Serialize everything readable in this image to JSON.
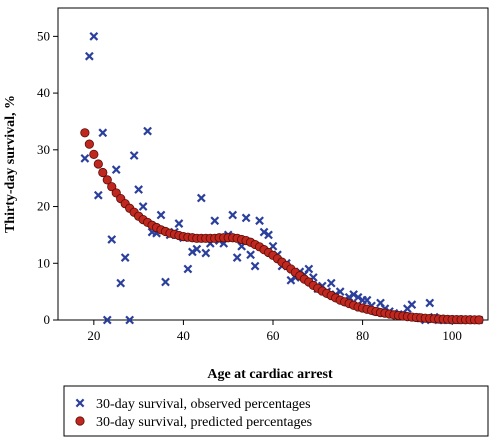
{
  "chart_data": {
    "type": "scatter",
    "title": "",
    "xlabel": "Age at cardiac arrest",
    "ylabel": "Thirty-day survival, %",
    "xlim": [
      12,
      108
    ],
    "ylim": [
      0,
      55
    ],
    "xticks": [
      "20",
      "40",
      "60",
      "80",
      "100"
    ],
    "yticks": [
      "0",
      "10",
      "20",
      "30",
      "40",
      "50"
    ],
    "grid": false,
    "legend_position": "below",
    "series": [
      {
        "name": "30-day survival, observed percentages",
        "marker": "x",
        "color": "#2b3f9c",
        "points": [
          [
            18,
            28.5
          ],
          [
            19,
            46.5
          ],
          [
            20,
            50
          ],
          [
            21,
            22
          ],
          [
            22,
            33
          ],
          [
            23,
            0
          ],
          [
            24,
            14.2
          ],
          [
            25,
            26.5
          ],
          [
            26,
            6.5
          ],
          [
            27,
            11
          ],
          [
            28,
            0
          ],
          [
            29,
            29
          ],
          [
            30,
            23
          ],
          [
            31,
            20
          ],
          [
            32,
            33.3
          ],
          [
            33,
            15.5
          ],
          [
            34,
            15.3
          ],
          [
            35,
            18.5
          ],
          [
            36,
            6.7
          ],
          [
            37,
            15
          ],
          [
            38,
            15.5
          ],
          [
            39,
            17
          ],
          [
            40,
            14.5
          ],
          [
            41,
            9
          ],
          [
            42,
            12
          ],
          [
            43,
            12.5
          ],
          [
            44,
            21.5
          ],
          [
            45,
            11.8
          ],
          [
            46,
            13.5
          ],
          [
            47,
            17.5
          ],
          [
            48,
            14
          ],
          [
            49,
            13.5
          ],
          [
            50,
            15
          ],
          [
            51,
            18.5
          ],
          [
            52,
            11
          ],
          [
            53,
            13
          ],
          [
            54,
            18
          ],
          [
            55,
            11.5
          ],
          [
            56,
            9.5
          ],
          [
            57,
            17.5
          ],
          [
            58,
            15.5
          ],
          [
            59,
            15
          ],
          [
            60,
            13
          ],
          [
            61,
            11.5
          ],
          [
            62,
            9.5
          ],
          [
            63,
            10
          ],
          [
            64,
            7
          ],
          [
            65,
            7.5
          ],
          [
            66,
            8.5
          ],
          [
            67,
            8
          ],
          [
            68,
            9
          ],
          [
            69,
            7.5
          ],
          [
            70,
            5.5
          ],
          [
            71,
            6
          ],
          [
            72,
            5
          ],
          [
            73,
            6.5
          ],
          [
            74,
            4.5
          ],
          [
            75,
            5
          ],
          [
            76,
            3.5
          ],
          [
            77,
            4
          ],
          [
            78,
            4.5
          ],
          [
            79,
            4
          ],
          [
            80,
            3.5
          ],
          [
            81,
            3.5
          ],
          [
            82,
            2.5
          ],
          [
            83,
            1.5
          ],
          [
            84,
            3
          ],
          [
            85,
            2
          ],
          [
            86,
            1.5
          ],
          [
            87,
            1.2
          ],
          [
            88,
            1
          ],
          [
            89,
            0.8
          ],
          [
            90,
            2
          ],
          [
            91,
            2.7
          ],
          [
            92,
            0.5
          ],
          [
            93,
            0.3
          ],
          [
            94,
            0
          ],
          [
            95,
            3
          ],
          [
            96,
            0.5
          ],
          [
            97,
            0
          ],
          [
            98,
            0
          ],
          [
            99,
            0
          ],
          [
            100,
            0
          ],
          [
            101,
            0
          ],
          [
            102,
            0
          ],
          [
            105,
            0
          ],
          [
            106,
            0
          ]
        ]
      },
      {
        "name": "30-day survival, predicted percentages",
        "marker": "circle",
        "color": "#c0271f",
        "points": [
          [
            18,
            33
          ],
          [
            19,
            31
          ],
          [
            20,
            29.2
          ],
          [
            21,
            27.5
          ],
          [
            22,
            26
          ],
          [
            23,
            24.7
          ],
          [
            24,
            23.5
          ],
          [
            25,
            22.4
          ],
          [
            26,
            21.4
          ],
          [
            27,
            20.5
          ],
          [
            28,
            19.7
          ],
          [
            29,
            19
          ],
          [
            30,
            18.3
          ],
          [
            31,
            17.7
          ],
          [
            32,
            17.2
          ],
          [
            33,
            16.7
          ],
          [
            34,
            16.3
          ],
          [
            35,
            15.9
          ],
          [
            36,
            15.6
          ],
          [
            37,
            15.3
          ],
          [
            38,
            15.1
          ],
          [
            39,
            14.9
          ],
          [
            40,
            14.7
          ],
          [
            41,
            14.6
          ],
          [
            42,
            14.5
          ],
          [
            43,
            14.4
          ],
          [
            44,
            14.4
          ],
          [
            45,
            14.4
          ],
          [
            46,
            14.4
          ],
          [
            47,
            14.4
          ],
          [
            48,
            14.5
          ],
          [
            49,
            14.5
          ],
          [
            50,
            14.5
          ],
          [
            51,
            14.5
          ],
          [
            52,
            14.4
          ],
          [
            53,
            14.2
          ],
          [
            54,
            14
          ],
          [
            55,
            13.7
          ],
          [
            56,
            13.3
          ],
          [
            57,
            12.9
          ],
          [
            58,
            12.4
          ],
          [
            59,
            11.9
          ],
          [
            60,
            11.4
          ],
          [
            61,
            10.8
          ],
          [
            62,
            10.2
          ],
          [
            63,
            9.6
          ],
          [
            64,
            9
          ],
          [
            65,
            8.4
          ],
          [
            66,
            7.8
          ],
          [
            67,
            7.2
          ],
          [
            68,
            6.7
          ],
          [
            69,
            6.1
          ],
          [
            70,
            5.6
          ],
          [
            71,
            5.1
          ],
          [
            72,
            4.7
          ],
          [
            73,
            4.3
          ],
          [
            74,
            3.9
          ],
          [
            75,
            3.5
          ],
          [
            76,
            3.2
          ],
          [
            77,
            2.9
          ],
          [
            78,
            2.6
          ],
          [
            79,
            2.3
          ],
          [
            80,
            2.1
          ],
          [
            81,
            1.9
          ],
          [
            82,
            1.7
          ],
          [
            83,
            1.5
          ],
          [
            84,
            1.3
          ],
          [
            85,
            1.2
          ],
          [
            86,
            1.05
          ],
          [
            87,
            0.9
          ],
          [
            88,
            0.8
          ],
          [
            89,
            0.7
          ],
          [
            90,
            0.6
          ],
          [
            91,
            0.52
          ],
          [
            92,
            0.45
          ],
          [
            93,
            0.38
          ],
          [
            94,
            0.32
          ],
          [
            95,
            0.27
          ],
          [
            96,
            0.22
          ],
          [
            97,
            0.18
          ],
          [
            98,
            0.15
          ],
          [
            99,
            0.12
          ],
          [
            100,
            0.1
          ],
          [
            101,
            0.08
          ],
          [
            102,
            0.06
          ],
          [
            103,
            0.05
          ],
          [
            104,
            0.04
          ],
          [
            105,
            0.03
          ],
          [
            106,
            0.02
          ]
        ]
      }
    ]
  }
}
